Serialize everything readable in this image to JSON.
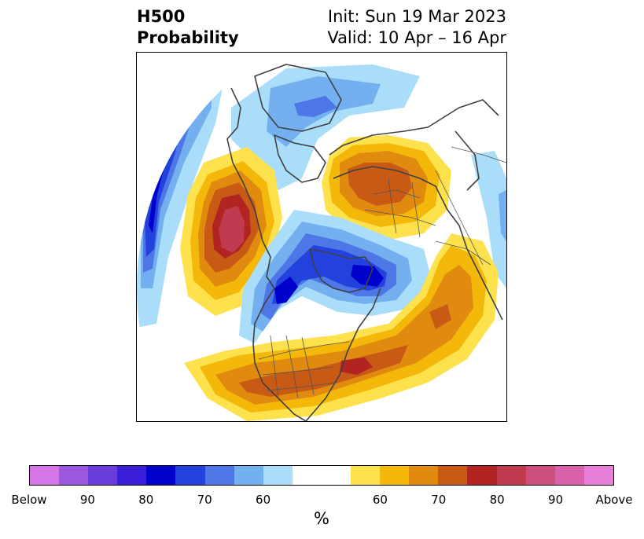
{
  "title": {
    "left_line1": "H500",
    "left_line2": "Probability",
    "right_line1": "Init: Sun 19 Mar 2023",
    "right_line2": "Valid: 10 Apr – 16 Apr"
  },
  "colorbar": {
    "colors": [
      "#d575e6",
      "#9a57e0",
      "#6a3cdb",
      "#3a1dd6",
      "#0000cc",
      "#2341dc",
      "#4d76e6",
      "#74aff0",
      "#a9ddf9",
      "#ffffff",
      "#ffffff",
      "#fde24e",
      "#f4b80b",
      "#e08a10",
      "#c85a16",
      "#b22422",
      "#c03a50",
      "#cc4e7f",
      "#d862a9",
      "#e87fdb"
    ],
    "labels": [
      "Below",
      "90",
      "80",
      "70",
      "60",
      "60",
      "70",
      "80",
      "90",
      "Above"
    ],
    "unit": "%"
  },
  "map": {
    "palette": {
      "blue60": "#a9ddf9",
      "blue65": "#74aff0",
      "blue70": "#4d76e6",
      "blue75": "#2341dc",
      "blue80": "#0000cc",
      "yellow60": "#fde24e",
      "orange65": "#f4b80b",
      "orange70": "#e08a10",
      "orange75": "#c85a16",
      "red80": "#b22422",
      "red85": "#c03a50",
      "coast": "#404040"
    }
  }
}
